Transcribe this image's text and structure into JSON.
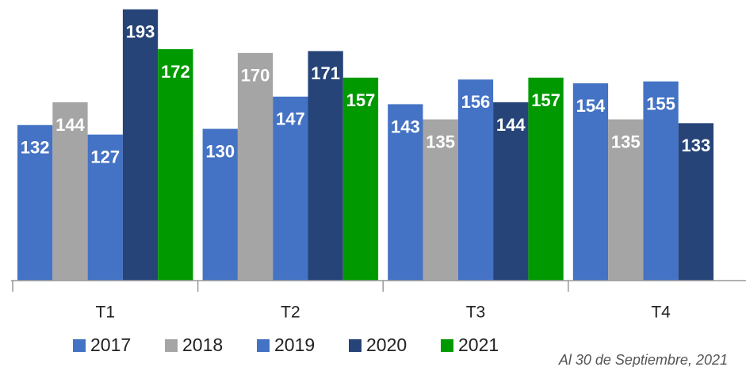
{
  "chart_data": {
    "type": "bar",
    "categories": [
      "T1",
      "T2",
      "T3",
      "T4"
    ],
    "series": [
      {
        "name": "2017",
        "color": "#4472c4",
        "values": [
          132,
          130,
          143,
          154
        ]
      },
      {
        "name": "2018",
        "color": "#a5a5a5",
        "values": [
          144,
          170,
          135,
          135
        ]
      },
      {
        "name": "2019",
        "color": "#4472c4",
        "values": [
          127,
          147,
          156,
          155
        ]
      },
      {
        "name": "2020",
        "color": "#264478",
        "values": [
          193,
          171,
          144,
          133
        ]
      },
      {
        "name": "2021",
        "color": "#009a00",
        "values": [
          172,
          157,
          157,
          null
        ]
      }
    ],
    "ylim": [
      50,
      195
    ],
    "note": "Al 30 de Septiembre, 2021"
  }
}
